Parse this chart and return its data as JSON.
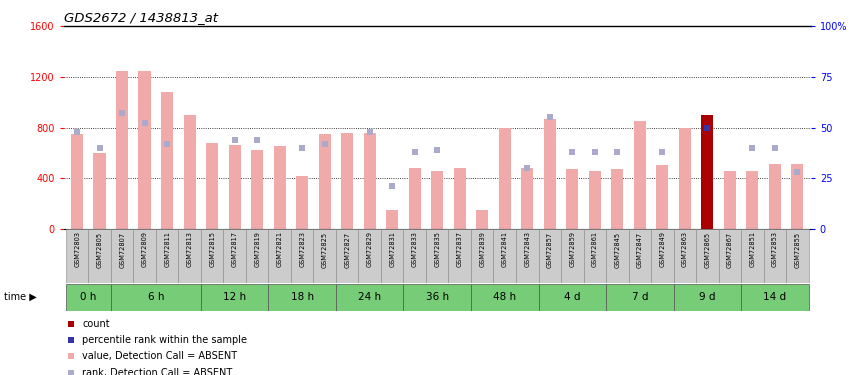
{
  "title": "GDS2672 / 1438813_at",
  "samples": [
    "GSM72803",
    "GSM72805",
    "GSM72807",
    "GSM72809",
    "GSM72811",
    "GSM72813",
    "GSM72815",
    "GSM72817",
    "GSM72819",
    "GSM72821",
    "GSM72823",
    "GSM72825",
    "GSM72827",
    "GSM72829",
    "GSM72831",
    "GSM72833",
    "GSM72835",
    "GSM72837",
    "GSM72839",
    "GSM72841",
    "GSM72843",
    "GSM72857",
    "GSM72859",
    "GSM72861",
    "GSM72845",
    "GSM72847",
    "GSM72849",
    "GSM72863",
    "GSM72865",
    "GSM72867",
    "GSM72851",
    "GSM72853",
    "GSM72855"
  ],
  "time_groups": [
    {
      "label": "0 h",
      "start": 0,
      "end": 2
    },
    {
      "label": "6 h",
      "start": 2,
      "end": 6
    },
    {
      "label": "12 h",
      "start": 6,
      "end": 9
    },
    {
      "label": "18 h",
      "start": 9,
      "end": 12
    },
    {
      "label": "24 h",
      "start": 12,
      "end": 15
    },
    {
      "label": "36 h",
      "start": 15,
      "end": 18
    },
    {
      "label": "48 h",
      "start": 18,
      "end": 21
    },
    {
      "label": "4 d",
      "start": 21,
      "end": 24
    },
    {
      "label": "7 d",
      "start": 24,
      "end": 27
    },
    {
      "label": "9 d",
      "start": 27,
      "end": 30
    },
    {
      "label": "14 d",
      "start": 30,
      "end": 33
    }
  ],
  "bar_values": [
    750,
    600,
    1250,
    1250,
    1080,
    900,
    680,
    660,
    620,
    650,
    420,
    750,
    760,
    760,
    150,
    480,
    460,
    480,
    150,
    800,
    480,
    870,
    470,
    460,
    470,
    850,
    500,
    800,
    900,
    460,
    460,
    510,
    510
  ],
  "blue_sq_values": [
    48,
    40,
    57,
    52,
    42,
    null,
    null,
    44,
    44,
    null,
    40,
    42,
    null,
    48,
    21,
    38,
    39,
    null,
    null,
    null,
    30,
    55,
    38,
    38,
    38,
    null,
    38,
    null,
    50,
    null,
    40,
    40,
    28
  ],
  "is_dark_red": [
    false,
    false,
    false,
    false,
    false,
    false,
    false,
    false,
    false,
    false,
    false,
    false,
    false,
    false,
    false,
    false,
    false,
    false,
    false,
    false,
    false,
    false,
    false,
    false,
    false,
    false,
    false,
    false,
    true,
    false,
    false,
    false,
    false
  ],
  "ylim_left": [
    0,
    1600
  ],
  "ylim_right": [
    0,
    100
  ],
  "yticks_left": [
    0,
    400,
    800,
    1200,
    1600
  ],
  "ytick_labels_left": [
    "0",
    "400",
    "800",
    "1200",
    "1600"
  ],
  "yticks_right": [
    0,
    25,
    50,
    75,
    100
  ],
  "ytick_labels_right": [
    "0",
    "25",
    "50",
    "75",
    "100%"
  ],
  "bar_color_absent": "#F0AAAA",
  "bar_color_present": "#AA0000",
  "blue_sq_absent_color": "#AAAACC",
  "blue_sq_present_color": "#3333AA",
  "bg_color": "#FFFFFF",
  "time_row_color": "#77CC77",
  "sample_row_color": "#CCCCCC",
  "legend_colors": [
    "#AA0000",
    "#3333AA",
    "#F0AAAA",
    "#AAAACC"
  ],
  "legend_labels": [
    "count",
    "percentile rank within the sample",
    "value, Detection Call = ABSENT",
    "rank, Detection Call = ABSENT"
  ]
}
